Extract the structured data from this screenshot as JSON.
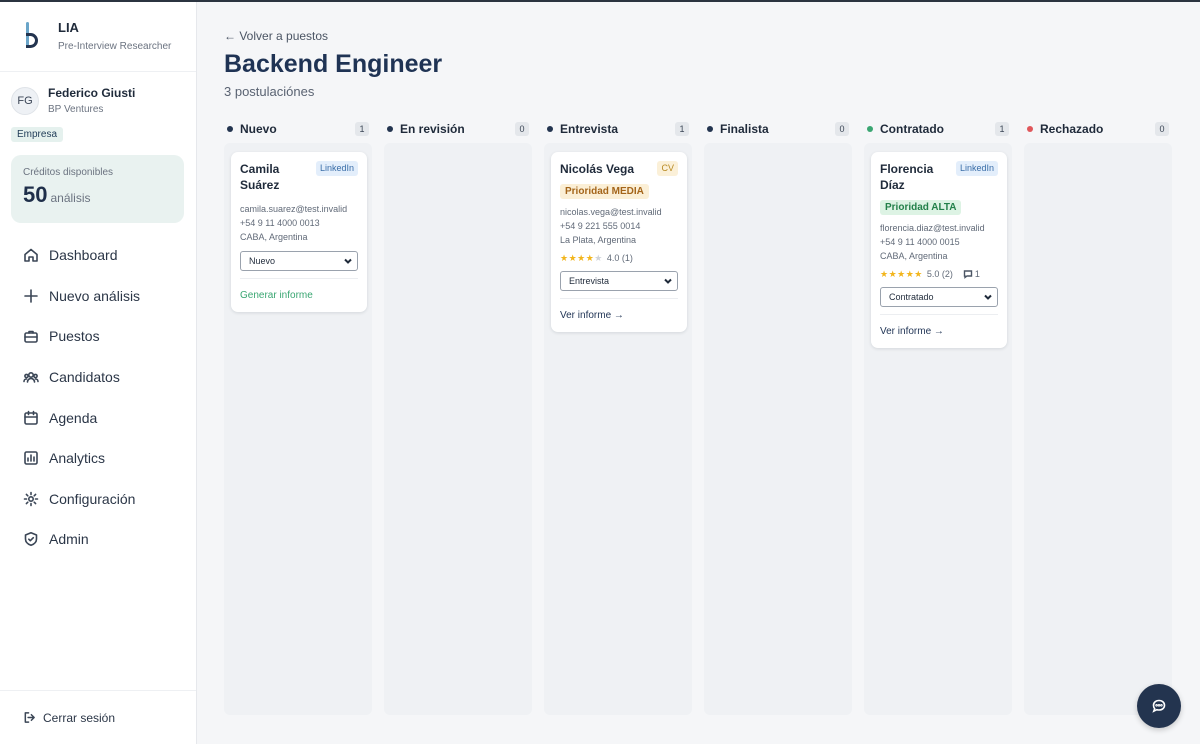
{
  "brand": {
    "name": "LIA",
    "subtitle": "Pre-Interview Researcher"
  },
  "user": {
    "initials": "FG",
    "name": "Federico Giusti",
    "org": "BP Ventures",
    "role": "Empresa"
  },
  "credits": {
    "label": "Créditos disponibles",
    "value": "50",
    "unit": "análisis"
  },
  "nav": [
    {
      "label": "Dashboard",
      "icon": "home-icon"
    },
    {
      "label": "Nuevo análisis",
      "icon": "plus-icon"
    },
    {
      "label": "Puestos",
      "icon": "briefcase-icon"
    },
    {
      "label": "Candidatos",
      "icon": "users-icon"
    },
    {
      "label": "Agenda",
      "icon": "calendar-icon"
    },
    {
      "label": "Analytics",
      "icon": "bar-chart-icon"
    },
    {
      "label": "Configuración",
      "icon": "gear-icon"
    },
    {
      "label": "Admin",
      "icon": "shield-icon"
    }
  ],
  "logout": {
    "label": "Cerrar sesión",
    "icon": "logout-icon"
  },
  "page": {
    "back": "← Volver a puestos",
    "title": "Backend Engineer",
    "subtitle": "3 postulaciónes"
  },
  "colors": {
    "accent": "#23344f",
    "nuevo": "#23344f",
    "en_revision": "#23344f",
    "entrevista": "#23344f",
    "finalista": "#23344f",
    "contratado": "#3aa672",
    "rechazado": "#e0575b"
  },
  "columns": [
    {
      "title": "Nuevo",
      "count": "1"
    },
    {
      "title": "En revisión",
      "count": "0"
    },
    {
      "title": "Entrevista",
      "count": "1"
    },
    {
      "title": "Finalista",
      "count": "0"
    },
    {
      "title": "Contratado",
      "count": "1"
    },
    {
      "title": "Rechazado",
      "count": "0"
    }
  ],
  "cards": {
    "camila": {
      "name": "Camila Suárez",
      "source": "LinkedIn",
      "email": "camila.suarez@test.invalid",
      "phone": "+54 9 11 4000 0013",
      "location": "CABA, Argentina",
      "status": "Nuevo",
      "action": "Generar informe"
    },
    "nicolas": {
      "name": "Nicolás Vega",
      "source": "CV",
      "priority": "Prioridad MEDIA",
      "email": "nicolas.vega@test.invalid",
      "phone": "+54 9 221 555 0014",
      "location": "La Plata, Argentina",
      "rating": 4,
      "rating_text": "4.0 (1)",
      "status": "Entrevista",
      "action": "Ver informe →"
    },
    "florencia": {
      "name": "Florencia Díaz",
      "source": "LinkedIn",
      "priority": "Prioridad ALTA",
      "email": "florencia.diaz@test.invalid",
      "phone": "+54 9 11 4000 0015",
      "location": "CABA, Argentina",
      "rating": 5,
      "rating_text": "5.0 (2)",
      "comments": "1",
      "status": "Contratado",
      "action": "Ver informe →"
    }
  },
  "chat": {
    "icon": "chat-icon"
  }
}
